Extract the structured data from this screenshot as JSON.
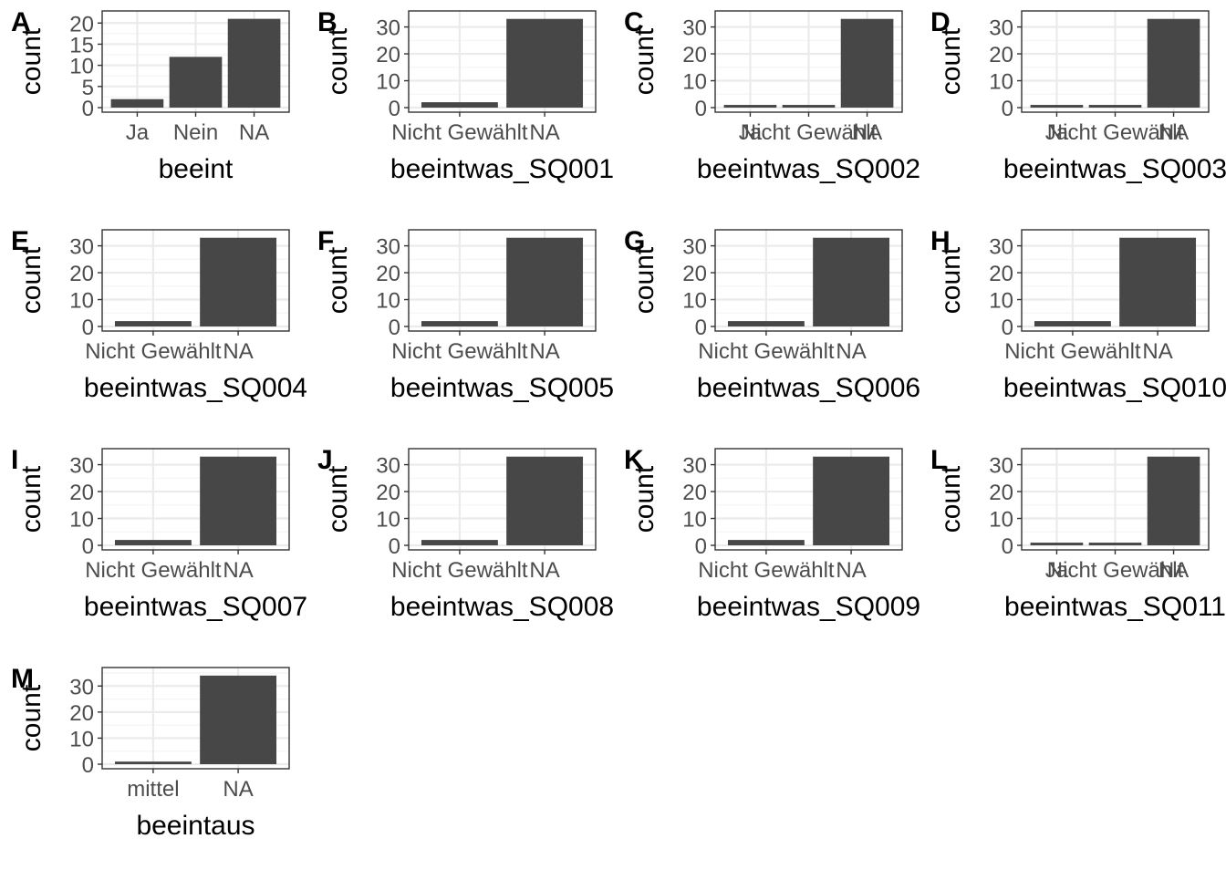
{
  "chart_data": [
    {
      "panel_label": "A",
      "type": "bar",
      "categories": [
        "Ja",
        "Nein",
        "NA"
      ],
      "values": [
        2,
        12,
        21
      ],
      "xlabel": "beeint",
      "ylabel": "count",
      "yticks": [
        0,
        5,
        10,
        15,
        20
      ],
      "ylim": [
        0,
        22
      ]
    },
    {
      "panel_label": "B",
      "type": "bar",
      "categories": [
        "Nicht Gewählt",
        "NA"
      ],
      "values": [
        2,
        33
      ],
      "xlabel": "beeintwas_SQ001",
      "ylabel": "count",
      "yticks": [
        0,
        10,
        20,
        30
      ],
      "ylim": [
        0,
        34.6
      ]
    },
    {
      "panel_label": "C",
      "type": "bar",
      "categories": [
        "Ja",
        "Nicht Gewählt",
        "NA"
      ],
      "values": [
        1,
        1,
        33
      ],
      "xlabel": "beeintwas_SQ002",
      "ylabel": "count",
      "yticks": [
        0,
        10,
        20,
        30
      ],
      "ylim": [
        0,
        34.6
      ]
    },
    {
      "panel_label": "D",
      "type": "bar",
      "categories": [
        "Ja",
        "Nicht Gewählt",
        "NA"
      ],
      "values": [
        1,
        1,
        33
      ],
      "xlabel": "beeintwas_SQ003",
      "ylabel": "count",
      "yticks": [
        0,
        10,
        20,
        30
      ],
      "ylim": [
        0,
        34.6
      ]
    },
    {
      "panel_label": "E",
      "type": "bar",
      "categories": [
        "Nicht Gewählt",
        "NA"
      ],
      "values": [
        2,
        33
      ],
      "xlabel": "beeintwas_SQ004",
      "ylabel": "count",
      "yticks": [
        0,
        10,
        20,
        30
      ],
      "ylim": [
        0,
        34.6
      ]
    },
    {
      "panel_label": "F",
      "type": "bar",
      "categories": [
        "Nicht Gewählt",
        "NA"
      ],
      "values": [
        2,
        33
      ],
      "xlabel": "beeintwas_SQ005",
      "ylabel": "count",
      "yticks": [
        0,
        10,
        20,
        30
      ],
      "ylim": [
        0,
        34.6
      ]
    },
    {
      "panel_label": "G",
      "type": "bar",
      "categories": [
        "Nicht Gewählt",
        "NA"
      ],
      "values": [
        2,
        33
      ],
      "xlabel": "beeintwas_SQ006",
      "ylabel": "count",
      "yticks": [
        0,
        10,
        20,
        30
      ],
      "ylim": [
        0,
        34.6
      ]
    },
    {
      "panel_label": "H",
      "type": "bar",
      "categories": [
        "Nicht Gewählt",
        "NA"
      ],
      "values": [
        2,
        33
      ],
      "xlabel": "beeintwas_SQ010",
      "ylabel": "count",
      "yticks": [
        0,
        10,
        20,
        30
      ],
      "ylim": [
        0,
        34.6
      ]
    },
    {
      "panel_label": "I",
      "type": "bar",
      "categories": [
        "Nicht Gewählt",
        "NA"
      ],
      "values": [
        2,
        33
      ],
      "xlabel": "beeintwas_SQ007",
      "ylabel": "count",
      "yticks": [
        0,
        10,
        20,
        30
      ],
      "ylim": [
        0,
        34.6
      ]
    },
    {
      "panel_label": "J",
      "type": "bar",
      "categories": [
        "Nicht Gewählt",
        "NA"
      ],
      "values": [
        2,
        33
      ],
      "xlabel": "beeintwas_SQ008",
      "ylabel": "count",
      "yticks": [
        0,
        10,
        20,
        30
      ],
      "ylim": [
        0,
        34.6
      ]
    },
    {
      "panel_label": "K",
      "type": "bar",
      "categories": [
        "Nicht Gewählt",
        "NA"
      ],
      "values": [
        2,
        33
      ],
      "xlabel": "beeintwas_SQ009",
      "ylabel": "count",
      "yticks": [
        0,
        10,
        20,
        30
      ],
      "ylim": [
        0,
        34.6
      ]
    },
    {
      "panel_label": "L",
      "type": "bar",
      "categories": [
        "Ja",
        "Nicht Gewählt",
        "NA"
      ],
      "values": [
        1,
        1,
        33
      ],
      "xlabel": "beeintwas_SQ011",
      "ylabel": "count",
      "yticks": [
        0,
        10,
        20,
        30
      ],
      "ylim": [
        0,
        34.6
      ]
    },
    {
      "panel_label": "M",
      "type": "bar",
      "categories": [
        "mittel",
        "NA"
      ],
      "values": [
        1,
        34
      ],
      "xlabel": "beeintaus",
      "ylabel": "count",
      "yticks": [
        0,
        10,
        20,
        30
      ],
      "ylim": [
        0,
        35.7
      ]
    }
  ],
  "style": {
    "bar_color": "#474747",
    "grid_major_color": "#ebebeb",
    "grid_minor_color": "#f4f4f4",
    "panel_border_color": "#333333",
    "tick_text_color": "#4d4d4d",
    "title_text_color": "#000000",
    "grid": true,
    "theme": "bw"
  }
}
